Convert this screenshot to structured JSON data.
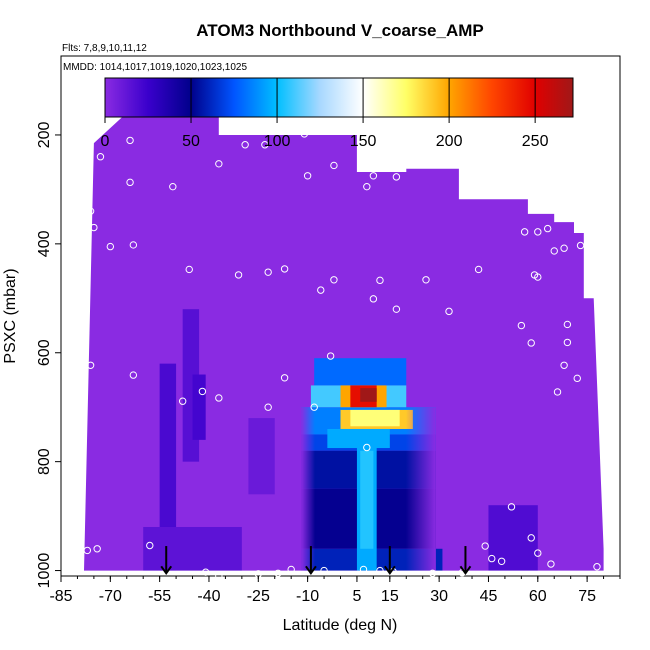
{
  "chart_data": {
    "type": "heatmap",
    "title": "ATOM3 Northbound V_coarse_AMP",
    "subtitle_flights": "Flts: 7,8,9,10,11,12",
    "subtitle_dates": "MMDD: 1014,1017,1019,1020,1023,1025",
    "xlabel": "Latitude (deg N)",
    "ylabel": "PSXC (mbar)",
    "xlim": [
      -85,
      85
    ],
    "ylim": [
      1010,
      55
    ],
    "xticks": [
      -85,
      -70,
      -55,
      -40,
      -25,
      -10,
      5,
      15,
      30,
      45,
      60,
      75
    ],
    "yticks": [
      200,
      400,
      600,
      800,
      1000
    ],
    "colorbar": {
      "range": [
        0,
        272
      ],
      "ticks": [
        0,
        50,
        100,
        150,
        200,
        250
      ],
      "stops": [
        {
          "v": 0,
          "c": "#8a2be2"
        },
        {
          "v": 25,
          "c": "#3a00cc"
        },
        {
          "v": 50,
          "c": "#00008b"
        },
        {
          "v": 75,
          "c": "#0055ff"
        },
        {
          "v": 100,
          "c": "#00bfff"
        },
        {
          "v": 125,
          "c": "#a8d8ff"
        },
        {
          "v": 150,
          "c": "#ffffff"
        },
        {
          "v": 175,
          "c": "#ffff66"
        },
        {
          "v": 200,
          "c": "#ffa500"
        },
        {
          "v": 225,
          "c": "#ff4500"
        },
        {
          "v": 250,
          "c": "#e00000"
        },
        {
          "v": 272,
          "c": "#a01818"
        }
      ]
    },
    "field_top_pressure": [
      {
        "lat": -75,
        "p": 215
      },
      {
        "lat": -66,
        "p": 165
      },
      {
        "lat": -37,
        "p": 165
      },
      {
        "lat": -37,
        "p": 200
      },
      {
        "lat": 5,
        "p": 200
      },
      {
        "lat": 5,
        "p": 268
      },
      {
        "lat": 20,
        "p": 268
      },
      {
        "lat": 20,
        "p": 262
      },
      {
        "lat": 36,
        "p": 262
      },
      {
        "lat": 36,
        "p": 318
      },
      {
        "lat": 57,
        "p": 318
      },
      {
        "lat": 57,
        "p": 345
      },
      {
        "lat": 65,
        "p": 345
      },
      {
        "lat": 65,
        "p": 360
      },
      {
        "lat": 71,
        "p": 360
      },
      {
        "lat": 71,
        "p": 380
      },
      {
        "lat": 74,
        "p": 380
      },
      {
        "lat": 74,
        "p": 500
      },
      {
        "lat": 77,
        "p": 500
      }
    ],
    "field_bottom_edge": [
      {
        "lat": -78,
        "p": 1000
      },
      {
        "lat": 80,
        "p": 1000
      },
      {
        "lat": 80,
        "p": 960
      },
      {
        "lat": 77,
        "p": 500
      }
    ],
    "cells": [
      {
        "lat0": -55,
        "lat1": -50,
        "p0": 620,
        "p1": 1000,
        "v": 20
      },
      {
        "lat0": -48,
        "lat1": -43,
        "p0": 520,
        "p1": 800,
        "v": 16
      },
      {
        "lat0": -45,
        "lat1": -41,
        "p0": 640,
        "p1": 760,
        "v": 22
      },
      {
        "lat0": -60,
        "lat1": -30,
        "p0": 920,
        "p1": 1000,
        "v": 14
      },
      {
        "lat0": -28,
        "lat1": -20,
        "p0": 720,
        "p1": 860,
        "v": 10
      },
      {
        "lat0": 45,
        "lat1": 60,
        "p0": 880,
        "p1": 1000,
        "v": 18
      },
      {
        "lat0": -12,
        "lat1": 29,
        "p0": 750,
        "p1": 780,
        "v": 70
      },
      {
        "lat0": -12,
        "lat1": 29,
        "p0": 780,
        "p1": 850,
        "v": 55
      },
      {
        "lat0": -12,
        "lat1": 29,
        "p0": 850,
        "p1": 960,
        "v": 48
      },
      {
        "lat0": -12,
        "lat1": 31,
        "p0": 960,
        "p1": 1000,
        "v": 60
      },
      {
        "lat0": -12,
        "lat1": 29,
        "p0": 700,
        "p1": 750,
        "v": 85
      },
      {
        "lat0": -8,
        "lat1": 20,
        "p0": 610,
        "p1": 660,
        "v": 80
      },
      {
        "lat0": -9,
        "lat1": 20,
        "p0": 660,
        "p1": 700,
        "v": 110
      },
      {
        "lat0": 0,
        "lat1": 14,
        "p0": 660,
        "p1": 700,
        "v": 200
      },
      {
        "lat0": 3,
        "lat1": 11,
        "p0": 660,
        "p1": 700,
        "v": 245
      },
      {
        "lat0": 6,
        "lat1": 11,
        "p0": 665,
        "p1": 690,
        "v": 272
      },
      {
        "lat0": 0,
        "lat1": 22,
        "p0": 705,
        "p1": 740,
        "v": 190
      },
      {
        "lat0": 3,
        "lat1": 18,
        "p0": 705,
        "p1": 735,
        "v": 172
      },
      {
        "lat0": -4,
        "lat1": 15,
        "p0": 740,
        "p1": 775,
        "v": 95
      },
      {
        "lat0": 5,
        "lat1": 11,
        "p0": 770,
        "p1": 1000,
        "v": 95
      },
      {
        "lat0": 6,
        "lat1": 10,
        "p0": 780,
        "p1": 960,
        "v": 105
      }
    ],
    "sample_points": [
      [
        -73,
        240
      ],
      [
        -76,
        340
      ],
      [
        -75,
        370
      ],
      [
        -70,
        405
      ],
      [
        -64,
        210
      ],
      [
        -64,
        287
      ],
      [
        -63,
        402
      ],
      [
        -51,
        295
      ],
      [
        -46,
        447
      ],
      [
        -37,
        253
      ],
      [
        -29,
        218
      ],
      [
        -31,
        457
      ],
      [
        -23,
        218
      ],
      [
        -22,
        452
      ],
      [
        -17,
        446
      ],
      [
        -11,
        198
      ],
      [
        -10,
        275
      ],
      [
        -6,
        485
      ],
      [
        -2,
        256
      ],
      [
        -2,
        466
      ],
      [
        8,
        295
      ],
      [
        10,
        275
      ],
      [
        10,
        501
      ],
      [
        12,
        467
      ],
      [
        17,
        277
      ],
      [
        17,
        520
      ],
      [
        26,
        466
      ],
      [
        33,
        524
      ],
      [
        42,
        447
      ],
      [
        56,
        378
      ],
      [
        59,
        457
      ],
      [
        60,
        378
      ],
      [
        60,
        461
      ],
      [
        63,
        372
      ],
      [
        65,
        413
      ],
      [
        68,
        408
      ],
      [
        65,
        331
      ],
      [
        73,
        403
      ],
      [
        69,
        548
      ],
      [
        69,
        581
      ],
      [
        68,
        623
      ],
      [
        66,
        672
      ],
      [
        72,
        647
      ],
      [
        58,
        582
      ],
      [
        55,
        550
      ],
      [
        -76,
        623
      ],
      [
        -63,
        641
      ],
      [
        -42,
        671
      ],
      [
        -37,
        683
      ],
      [
        -48,
        689
      ],
      [
        -22,
        700
      ],
      [
        -17,
        646
      ],
      [
        -3,
        606
      ],
      [
        -8,
        700
      ],
      [
        8,
        774
      ],
      [
        -77,
        963
      ],
      [
        -74,
        960
      ],
      [
        -58,
        954
      ],
      [
        -41,
        1003
      ],
      [
        -37,
        1010
      ],
      [
        -25,
        1006
      ],
      [
        -19,
        1005
      ],
      [
        -15,
        998
      ],
      [
        -5,
        1000
      ],
      [
        7,
        998
      ],
      [
        12,
        1000
      ],
      [
        16,
        1002
      ],
      [
        28,
        1005
      ],
      [
        37,
        1004
      ],
      [
        44,
        955
      ],
      [
        46,
        978
      ],
      [
        49,
        983
      ],
      [
        52,
        883
      ],
      [
        58,
        940
      ],
      [
        60,
        968
      ],
      [
        64,
        988
      ],
      [
        78,
        993
      ]
    ],
    "arrows_lat": [
      -53,
      -9,
      15,
      38
    ]
  }
}
